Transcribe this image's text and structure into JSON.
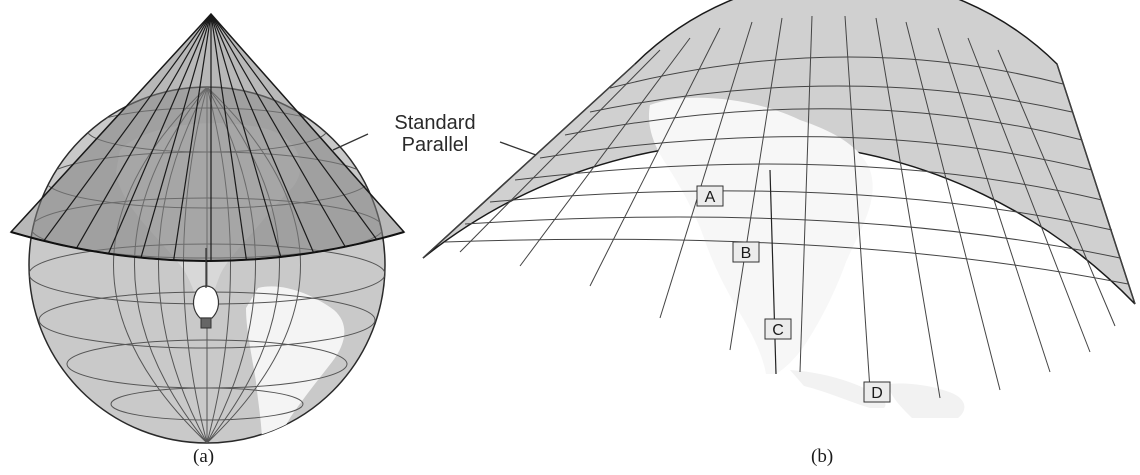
{
  "callout": {
    "line1": "Standard",
    "line2": "Parallel"
  },
  "captions": {
    "a": "(a)",
    "b": "(b)"
  },
  "points": [
    {
      "label": "A"
    },
    {
      "label": "B"
    },
    {
      "label": "C"
    },
    {
      "label": "D"
    }
  ],
  "colors": {
    "land": "#f6f6f6",
    "ocean": "#c9c9c9",
    "cone": "#8a8a8a",
    "grid": "#444444",
    "outline": "#1a1a1a"
  }
}
